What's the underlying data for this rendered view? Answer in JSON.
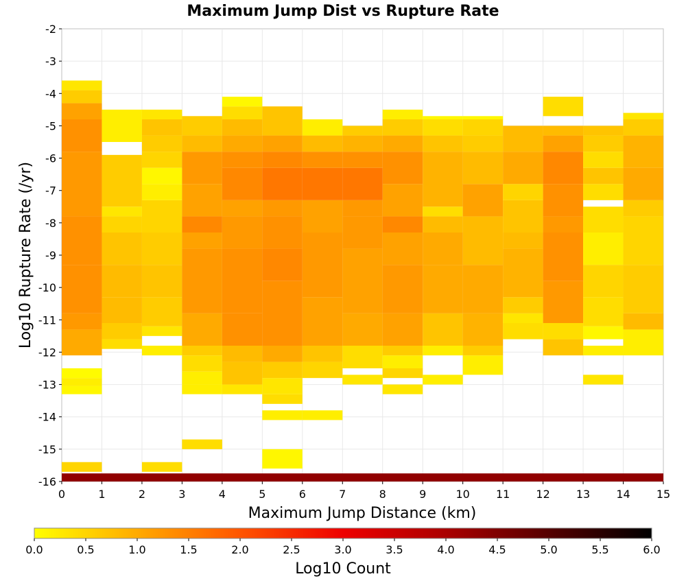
{
  "chart_data": {
    "type": "heatmap",
    "title": "Maximum Jump Dist vs Rupture Rate",
    "xlabel": "Maximum Jump Distance (km)",
    "ylabel": "Log10 Rupture Rate (/yr)",
    "xlim": [
      0,
      15
    ],
    "ylim": [
      -16,
      -2
    ],
    "xticks": [
      "0",
      "1",
      "2",
      "3",
      "4",
      "5",
      "6",
      "7",
      "8",
      "9",
      "10",
      "11",
      "12",
      "13",
      "14",
      "15"
    ],
    "yticks": [
      "-2",
      "-3",
      "-4",
      "-5",
      "-6",
      "-7",
      "-8",
      "-9",
      "-10",
      "-11",
      "-12",
      "-13",
      "-14",
      "-15",
      "-16"
    ],
    "grid": true,
    "bin_width_x": 1,
    "bin_height_y": 0.25,
    "colorbar": {
      "label": "Log10 Count",
      "min": 0,
      "max": 6,
      "ticks": [
        "0.0",
        "0.5",
        "1.0",
        "1.5",
        "2.0",
        "2.5",
        "3.0",
        "3.5",
        "4.0",
        "4.5",
        "5.0",
        "5.5",
        "6.0"
      ],
      "colors": [
        "#ffff00",
        "#ffaa00",
        "#ff5500",
        "#ee0000",
        "#aa0000",
        "#550000",
        "#000000"
      ]
    },
    "bottom_band": {
      "y_range": [
        -16,
        -15.75
      ],
      "log10_count": 4.3
    },
    "cells": [
      {
        "x": 0,
        "y_ranges": [
          [
            -15.7,
            -15.4,
            0.5
          ],
          [
            -13.3,
            -13.05,
            0.1
          ],
          [
            -13.05,
            -12.8,
            0.2
          ],
          [
            -12.8,
            -12.5,
            0.05
          ],
          [
            -12.1,
            -11.8,
            1.0
          ],
          [
            -11.8,
            -11.3,
            1.0
          ],
          [
            -11.3,
            -10.8,
            1.2
          ],
          [
            -10.8,
            -9.3,
            1.3
          ],
          [
            -9.3,
            -7.8,
            1.3
          ],
          [
            -7.8,
            -5.8,
            1.2
          ],
          [
            -5.8,
            -4.8,
            1.3
          ],
          [
            -4.8,
            -4.3,
            1.1
          ],
          [
            -4.3,
            -3.9,
            0.6
          ],
          [
            -3.9,
            -3.6,
            0.3
          ]
        ]
      },
      {
        "x": 1,
        "y_ranges": [
          [
            -11.9,
            -11.6,
            0.4
          ],
          [
            -11.6,
            -11.1,
            0.6
          ],
          [
            -11.1,
            -10.3,
            0.8
          ],
          [
            -10.3,
            -9.3,
            0.8
          ],
          [
            -9.3,
            -8.3,
            0.7
          ],
          [
            -8.3,
            -7.8,
            0.5
          ],
          [
            -7.8,
            -7.5,
            0.3
          ],
          [
            -7.5,
            -5.9,
            0.6
          ],
          [
            -5.5,
            -4.5,
            0.2
          ]
        ]
      },
      {
        "x": 2,
        "y_ranges": [
          [
            -15.7,
            -15.4,
            0.4
          ],
          [
            -12.1,
            -11.8,
            0.2
          ],
          [
            -11.5,
            -11.2,
            0.3
          ],
          [
            -11.2,
            -10.3,
            0.6
          ],
          [
            -10.3,
            -9.3,
            0.7
          ],
          [
            -9.3,
            -8.3,
            0.6
          ],
          [
            -8.3,
            -7.3,
            0.5
          ],
          [
            -7.3,
            -6.8,
            0.2
          ],
          [
            -6.8,
            -6.3,
            0.1
          ],
          [
            -6.3,
            -5.8,
            0.5
          ],
          [
            -5.8,
            -5.3,
            0.6
          ],
          [
            -5.3,
            -4.8,
            0.7
          ],
          [
            -4.8,
            -4.5,
            0.3
          ]
        ]
      },
      {
        "x": 3,
        "y_ranges": [
          [
            -15,
            -14.7,
            0.4
          ],
          [
            -13.3,
            -13,
            0.2
          ],
          [
            -13,
            -12.6,
            0.2
          ],
          [
            -12.6,
            -12.1,
            0.4
          ],
          [
            -12.1,
            -11.8,
            0.6
          ],
          [
            -11.8,
            -10.8,
            1.0
          ],
          [
            -10.8,
            -8.8,
            1.2
          ],
          [
            -8.8,
            -8.3,
            1.1
          ],
          [
            -8.3,
            -7.8,
            1.4
          ],
          [
            -7.8,
            -6.8,
            1.1
          ],
          [
            -6.8,
            -5.8,
            1.2
          ],
          [
            -5.8,
            -5.3,
            0.8
          ],
          [
            -5.3,
            -4.7,
            0.6
          ]
        ]
      },
      {
        "x": 4,
        "y_ranges": [
          [
            -13.3,
            -13,
            0.3
          ],
          [
            -13,
            -12.3,
            0.7
          ],
          [
            -12.3,
            -11.8,
            0.8
          ],
          [
            -11.8,
            -10.8,
            1.3
          ],
          [
            -10.8,
            -8.8,
            1.3
          ],
          [
            -8.8,
            -7.8,
            1.2
          ],
          [
            -7.8,
            -7.3,
            1.1
          ],
          [
            -7.3,
            -6.3,
            1.4
          ],
          [
            -6.3,
            -5.8,
            1.3
          ],
          [
            -5.8,
            -5.3,
            1.0
          ],
          [
            -5.3,
            -4.8,
            0.8
          ],
          [
            -4.8,
            -4.4,
            0.4
          ],
          [
            -4.4,
            -4.1,
            0.1
          ]
        ]
      },
      {
        "x": 5,
        "y_ranges": [
          [
            -15.6,
            -15,
            0.1
          ],
          [
            -14.1,
            -13.8,
            0.2
          ],
          [
            -13.6,
            -13.3,
            0.4
          ],
          [
            -13.3,
            -12.8,
            0.3
          ],
          [
            -12.8,
            -12.3,
            0.6
          ],
          [
            -12.3,
            -11.8,
            1.0
          ],
          [
            -11.8,
            -9.8,
            1.3
          ],
          [
            -9.8,
            -8.8,
            1.4
          ],
          [
            -8.8,
            -7.8,
            1.3
          ],
          [
            -7.8,
            -7.3,
            1.2
          ],
          [
            -7.3,
            -6.3,
            1.6
          ],
          [
            -6.3,
            -5.8,
            1.4
          ],
          [
            -5.8,
            -5.3,
            1.1
          ],
          [
            -5.3,
            -4.4,
            0.7
          ]
        ]
      },
      {
        "x": 6,
        "y_ranges": [
          [
            -14.1,
            -13.8,
            0.2
          ],
          [
            -12.8,
            -12.3,
            0.5
          ],
          [
            -12.3,
            -11.8,
            0.7
          ],
          [
            -11.8,
            -10.3,
            1.1
          ],
          [
            -10.3,
            -8.3,
            1.2
          ],
          [
            -8.3,
            -7.3,
            1.1
          ],
          [
            -7.3,
            -6.3,
            1.6
          ],
          [
            -6.3,
            -5.8,
            1.3
          ],
          [
            -5.8,
            -5.3,
            0.8
          ],
          [
            -5.3,
            -4.8,
            0.2
          ]
        ]
      },
      {
        "x": 7,
        "y_ranges": [
          [
            -13,
            -12.7,
            0.3
          ],
          [
            -12.5,
            -11.8,
            0.4
          ],
          [
            -11.8,
            -10.8,
            1.0
          ],
          [
            -10.8,
            -8.8,
            1.1
          ],
          [
            -8.8,
            -7.8,
            1.2
          ],
          [
            -7.8,
            -7.3,
            1.2
          ],
          [
            -7.3,
            -6.3,
            1.6
          ],
          [
            -6.3,
            -5.8,
            1.3
          ],
          [
            -5.8,
            -5.3,
            0.9
          ],
          [
            -5.3,
            -5,
            0.6
          ]
        ]
      },
      {
        "x": 8,
        "y_ranges": [
          [
            -13.3,
            -13,
            0.3
          ],
          [
            -12.8,
            -12.5,
            0.5
          ],
          [
            -12.5,
            -12.1,
            0.2
          ],
          [
            -12.1,
            -11.8,
            0.6
          ],
          [
            -11.8,
            -10.8,
            1.1
          ],
          [
            -10.8,
            -9.3,
            1.2
          ],
          [
            -9.3,
            -8.3,
            1.1
          ],
          [
            -8.3,
            -7.8,
            1.4
          ],
          [
            -7.8,
            -6.8,
            1.1
          ],
          [
            -6.8,
            -5.8,
            1.3
          ],
          [
            -5.8,
            -5.3,
            1.0
          ],
          [
            -5.3,
            -4.8,
            0.6
          ],
          [
            -4.8,
            -4.5,
            0.2
          ]
        ]
      },
      {
        "x": 9,
        "y_ranges": [
          [
            -13,
            -12.7,
            0.2
          ],
          [
            -12.1,
            -11.8,
            0.2
          ],
          [
            -11.8,
            -10.8,
            0.7
          ],
          [
            -10.8,
            -9.3,
            1.0
          ],
          [
            -9.3,
            -8.3,
            1.0
          ],
          [
            -8.3,
            -7.8,
            0.8
          ],
          [
            -7.8,
            -7.5,
            0.4
          ],
          [
            -7.5,
            -5.8,
            0.9
          ],
          [
            -5.8,
            -5.3,
            0.7
          ],
          [
            -5.3,
            -4.8,
            0.4
          ],
          [
            -4.8,
            -4.7,
            0.1
          ]
        ]
      },
      {
        "x": 10,
        "y_ranges": [
          [
            -12.7,
            -12.1,
            0.2
          ],
          [
            -12.1,
            -11.8,
            0.6
          ],
          [
            -11.8,
            -10.8,
            0.9
          ],
          [
            -10.8,
            -9.3,
            1.0
          ],
          [
            -9.3,
            -7.8,
            0.8
          ],
          [
            -7.8,
            -6.8,
            1.1
          ],
          [
            -6.8,
            -5.8,
            0.8
          ],
          [
            -5.8,
            -5.3,
            0.6
          ],
          [
            -5.3,
            -4.8,
            0.5
          ],
          [
            -4.8,
            -4.7,
            0.1
          ]
        ]
      },
      {
        "x": 11,
        "y_ranges": [
          [
            -11.6,
            -11.1,
            0.4
          ],
          [
            -11.1,
            -10.8,
            0.3
          ],
          [
            -10.8,
            -10.3,
            0.6
          ],
          [
            -10.3,
            -8.8,
            0.9
          ],
          [
            -8.8,
            -8.3,
            0.8
          ],
          [
            -8.3,
            -7.3,
            0.7
          ],
          [
            -7.3,
            -6.8,
            0.5
          ],
          [
            -6.8,
            -5.8,
            1.0
          ],
          [
            -5.8,
            -5,
            0.8
          ]
        ]
      },
      {
        "x": 12,
        "y_ranges": [
          [
            -12.1,
            -11.6,
            0.7
          ],
          [
            -11.6,
            -11.1,
            0.4
          ],
          [
            -11.1,
            -9.8,
            1.2
          ],
          [
            -9.8,
            -8.3,
            1.3
          ],
          [
            -8.3,
            -7.8,
            1.2
          ],
          [
            -7.8,
            -6.8,
            1.3
          ],
          [
            -6.8,
            -5.8,
            1.4
          ],
          [
            -5.8,
            -5.3,
            1.1
          ],
          [
            -5.3,
            -5,
            0.8
          ],
          [
            -4.7,
            -4.1,
            0.4
          ]
        ]
      },
      {
        "x": 13,
        "y_ranges": [
          [
            -13,
            -12.7,
            0.3
          ],
          [
            -12.1,
            -11.8,
            0.2
          ],
          [
            -11.6,
            -11.2,
            0.1
          ],
          [
            -11.2,
            -10.3,
            0.4
          ],
          [
            -10.3,
            -9.3,
            0.5
          ],
          [
            -9.3,
            -8.3,
            0.2
          ],
          [
            -8.3,
            -7.5,
            0.4
          ],
          [
            -7.3,
            -6.8,
            0.4
          ],
          [
            -6.8,
            -6.3,
            0.7
          ],
          [
            -6.3,
            -5.8,
            0.4
          ],
          [
            -5.8,
            -5.3,
            0.6
          ],
          [
            -5.3,
            -5,
            0.7
          ]
        ]
      },
      {
        "x": 14,
        "y_ranges": [
          [
            -12.1,
            -11.3,
            0.2
          ],
          [
            -11.3,
            -10.8,
            0.8
          ],
          [
            -10.8,
            -9.3,
            0.6
          ],
          [
            -9.3,
            -7.8,
            0.5
          ],
          [
            -7.8,
            -7.3,
            0.6
          ],
          [
            -7.3,
            -6.3,
            1.0
          ],
          [
            -6.3,
            -5.3,
            0.9
          ],
          [
            -5.3,
            -4.8,
            0.6
          ],
          [
            -4.8,
            -4.6,
            0.3
          ]
        ]
      }
    ]
  }
}
